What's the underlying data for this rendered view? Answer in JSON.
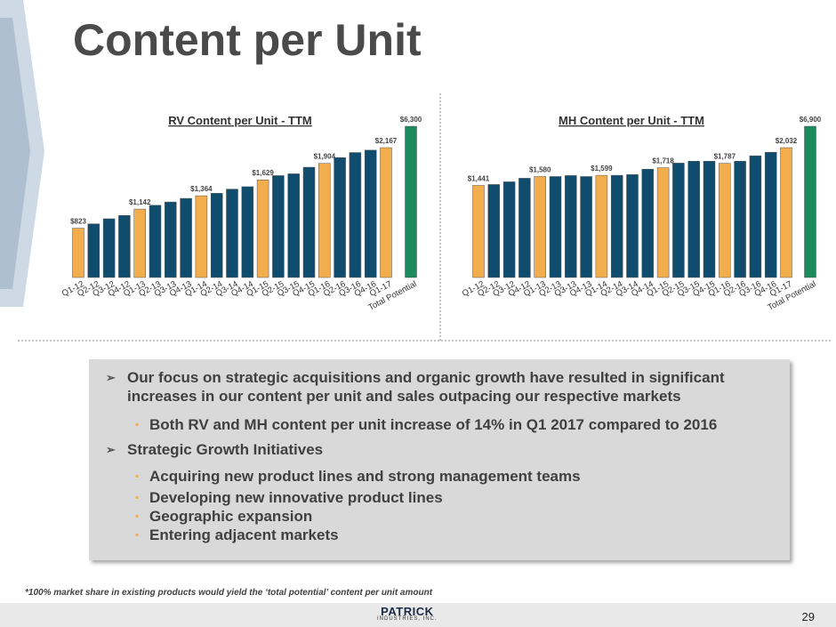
{
  "slide": {
    "title": "Content per Unit",
    "bullets": [
      {
        "level": 1,
        "text": "Our focus on strategic acquisitions and organic growth have resulted in significant increases in our content per unit and sales outpacing our respective markets"
      },
      {
        "level": 2,
        "text": "Both RV and MH content per unit increase of 14% in Q1 2017 compared to 2016"
      },
      {
        "level": 1,
        "text": "Strategic Growth Initiatives"
      },
      {
        "level": 2,
        "text": "Acquiring new product lines and strong management teams"
      },
      {
        "level": 2,
        "text": "Developing new innovative product lines"
      },
      {
        "level": 2,
        "text": "Geographic expansion"
      },
      {
        "level": 2,
        "text": "Entering adjacent markets"
      }
    ],
    "footnote": "*100% market share in existing products would yield the ‘total potential’ content per unit amount",
    "logo": {
      "name": "PATRICK",
      "tagline": "INDUSTRIES, INC."
    },
    "page_number": 29
  },
  "chart_data": [
    {
      "type": "bar",
      "title": "RV Content per Unit - TTM",
      "categories": [
        "Q1-12",
        "Q2-12",
        "Q3-12",
        "Q4-12",
        "Q1-13",
        "Q2-13",
        "Q3-13",
        "Q4-13",
        "Q1-14",
        "Q2-14",
        "Q3-14",
        "Q4-14",
        "Q1-15",
        "Q2-15",
        "Q3-15",
        "Q4-15",
        "Q1-16",
        "Q2-16",
        "Q3-16",
        "Q4-16",
        "Q1-17",
        "Total Potential"
      ],
      "values": [
        823,
        895,
        980,
        1035,
        1142,
        1205,
        1260,
        1320,
        1364,
        1405,
        1475,
        1515,
        1629,
        1700,
        1730,
        1840,
        1904,
        2000,
        2085,
        2125,
        2167,
        6300
      ],
      "value_labels": [
        "$823",
        null,
        null,
        null,
        "$1,142",
        null,
        null,
        null,
        "$1,364",
        null,
        null,
        null,
        "$1,629",
        null,
        null,
        null,
        "$1,904",
        null,
        null,
        null,
        "$2,167",
        "$6,300"
      ],
      "colors": [
        "#f2ad4d",
        "#0f4c6d",
        "#0f4c6d",
        "#0f4c6d",
        "#f2ad4d",
        "#0f4c6d",
        "#0f4c6d",
        "#0f4c6d",
        "#f2ad4d",
        "#0f4c6d",
        "#0f4c6d",
        "#0f4c6d",
        "#f2ad4d",
        "#0f4c6d",
        "#0f4c6d",
        "#0f4c6d",
        "#f2ad4d",
        "#0f4c6d",
        "#0f4c6d",
        "#0f4c6d",
        "#f2ad4d",
        "#1b8a5c"
      ]
    },
    {
      "type": "bar",
      "title": "MH Content per Unit - TTM",
      "categories": [
        "Q1-12",
        "Q2-12",
        "Q3-12",
        "Q4-12",
        "Q1-13",
        "Q2-13",
        "Q3-13",
        "Q4-13",
        "Q1-14",
        "Q2-14",
        "Q3-14",
        "Q4-14",
        "Q1-15",
        "Q2-15",
        "Q3-15",
        "Q4-15",
        "Q1-16",
        "Q2-16",
        "Q3-16",
        "Q4-16",
        "Q1-17",
        "Total Potential"
      ],
      "values": [
        1441,
        1455,
        1497,
        1553,
        1580,
        1580,
        1595,
        1580,
        1599,
        1599,
        1610,
        1695,
        1718,
        1790,
        1820,
        1820,
        1787,
        1820,
        1905,
        1960,
        2032,
        6900
      ],
      "value_labels": [
        "$1,441",
        null,
        null,
        null,
        "$1,580",
        null,
        null,
        null,
        "$1,599",
        null,
        null,
        null,
        "$1,718",
        null,
        null,
        null,
        "$1,787",
        null,
        null,
        null,
        "$2,032",
        "$6,900"
      ],
      "colors": [
        "#f2ad4d",
        "#0f4c6d",
        "#0f4c6d",
        "#0f4c6d",
        "#f2ad4d",
        "#0f4c6d",
        "#0f4c6d",
        "#0f4c6d",
        "#f2ad4d",
        "#0f4c6d",
        "#0f4c6d",
        "#0f4c6d",
        "#f2ad4d",
        "#0f4c6d",
        "#0f4c6d",
        "#0f4c6d",
        "#f2ad4d",
        "#0f4c6d",
        "#0f4c6d",
        "#0f4c6d",
        "#f2ad4d",
        "#1b8a5c"
      ]
    }
  ]
}
